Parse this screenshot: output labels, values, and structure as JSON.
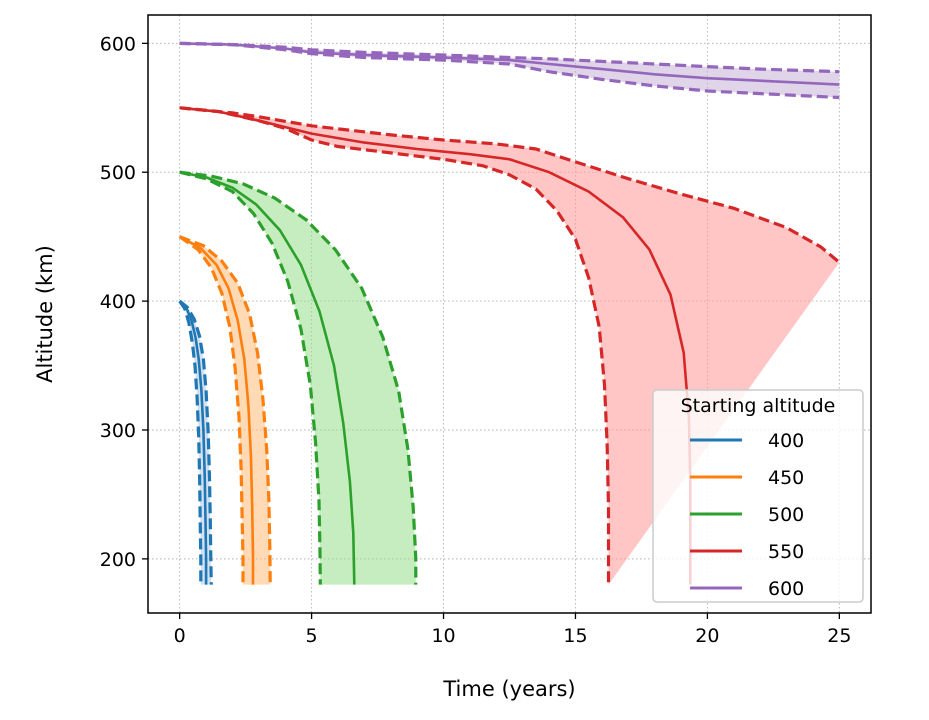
{
  "chart_data": {
    "type": "line",
    "title": "",
    "xlabel": "Time (years)",
    "ylabel": "Altitude (km)",
    "xlim": [
      -1.2,
      26.2
    ],
    "ylim": [
      158,
      622
    ],
    "xticks": [
      0,
      5,
      10,
      15,
      20,
      25
    ],
    "yticks": [
      200,
      300,
      400,
      500,
      600
    ],
    "grid": true,
    "grid_style": "dotted",
    "legend": {
      "title": "Starting altitude",
      "placement": "lower-right"
    },
    "series": [
      {
        "name": "400",
        "color": "#1f77b4",
        "fill_color": "#aec7e8",
        "mean": [
          [
            0,
            400
          ],
          [
            0.25,
            395
          ],
          [
            0.45,
            385
          ],
          [
            0.6,
            372
          ],
          [
            0.72,
            355
          ],
          [
            0.82,
            332
          ],
          [
            0.9,
            300
          ],
          [
            0.95,
            265
          ],
          [
            0.98,
            230
          ],
          [
            1.0,
            200
          ],
          [
            1.0,
            180
          ]
        ],
        "lower": [
          [
            0,
            400
          ],
          [
            0.2,
            394
          ],
          [
            0.35,
            383
          ],
          [
            0.48,
            368
          ],
          [
            0.58,
            350
          ],
          [
            0.66,
            325
          ],
          [
            0.72,
            295
          ],
          [
            0.76,
            260
          ],
          [
            0.78,
            230
          ],
          [
            0.8,
            200
          ],
          [
            0.8,
            180
          ]
        ],
        "upper": [
          [
            0,
            400
          ],
          [
            0.3,
            395
          ],
          [
            0.55,
            386
          ],
          [
            0.75,
            373
          ],
          [
            0.9,
            355
          ],
          [
            1.0,
            330
          ],
          [
            1.08,
            298
          ],
          [
            1.13,
            262
          ],
          [
            1.16,
            230
          ],
          [
            1.18,
            200
          ],
          [
            1.2,
            180
          ]
        ]
      },
      {
        "name": "450",
        "color": "#ff7f0e",
        "fill_color": "#ffbb78",
        "mean": [
          [
            0,
            450
          ],
          [
            0.8,
            441
          ],
          [
            1.4,
            428
          ],
          [
            1.85,
            410
          ],
          [
            2.2,
            385
          ],
          [
            2.45,
            355
          ],
          [
            2.6,
            320
          ],
          [
            2.7,
            280
          ],
          [
            2.75,
            240
          ],
          [
            2.78,
            200
          ],
          [
            2.78,
            180
          ]
        ],
        "lower": [
          [
            0,
            450
          ],
          [
            0.7,
            440
          ],
          [
            1.2,
            426
          ],
          [
            1.6,
            406
          ],
          [
            1.9,
            380
          ],
          [
            2.1,
            348
          ],
          [
            2.25,
            310
          ],
          [
            2.33,
            270
          ],
          [
            2.37,
            230
          ],
          [
            2.4,
            200
          ],
          [
            2.4,
            180
          ]
        ],
        "upper": [
          [
            0,
            450
          ],
          [
            0.9,
            443
          ],
          [
            1.6,
            431
          ],
          [
            2.2,
            414
          ],
          [
            2.65,
            390
          ],
          [
            2.95,
            360
          ],
          [
            3.15,
            325
          ],
          [
            3.3,
            285
          ],
          [
            3.38,
            245
          ],
          [
            3.42,
            205
          ],
          [
            3.43,
            180
          ]
        ]
      },
      {
        "name": "500",
        "color": "#2ca02c",
        "fill_color": "#98df8a",
        "mean": [
          [
            0,
            500
          ],
          [
            1.0,
            496
          ],
          [
            2.0,
            488
          ],
          [
            2.9,
            475
          ],
          [
            3.8,
            455
          ],
          [
            4.6,
            428
          ],
          [
            5.3,
            392
          ],
          [
            5.85,
            350
          ],
          [
            6.2,
            305
          ],
          [
            6.45,
            260
          ],
          [
            6.58,
            220
          ],
          [
            6.62,
            180
          ]
        ],
        "lower": [
          [
            0,
            500
          ],
          [
            1.0,
            495
          ],
          [
            2.0,
            485
          ],
          [
            2.8,
            468
          ],
          [
            3.5,
            445
          ],
          [
            4.1,
            415
          ],
          [
            4.6,
            378
          ],
          [
            4.95,
            335
          ],
          [
            5.15,
            290
          ],
          [
            5.28,
            245
          ],
          [
            5.32,
            205
          ],
          [
            5.33,
            180
          ]
        ],
        "upper": [
          [
            0,
            500
          ],
          [
            1.2,
            497
          ],
          [
            2.4,
            491
          ],
          [
            3.6,
            480
          ],
          [
            4.8,
            463
          ],
          [
            5.9,
            440
          ],
          [
            6.9,
            410
          ],
          [
            7.7,
            372
          ],
          [
            8.3,
            330
          ],
          [
            8.65,
            285
          ],
          [
            8.85,
            240
          ],
          [
            8.95,
            200
          ],
          [
            8.95,
            180
          ]
        ]
      },
      {
        "name": "550",
        "color": "#d62728",
        "fill_color": "#ff9896",
        "mean": [
          [
            0,
            550
          ],
          [
            1.5,
            547
          ],
          [
            3,
            540
          ],
          [
            5,
            530
          ],
          [
            7,
            523
          ],
          [
            9,
            518
          ],
          [
            11,
            514
          ],
          [
            12.5,
            510
          ],
          [
            14,
            500
          ],
          [
            15.5,
            485
          ],
          [
            16.8,
            465
          ],
          [
            17.8,
            440
          ],
          [
            18.6,
            405
          ],
          [
            19.1,
            360
          ],
          [
            19.3,
            310
          ],
          [
            19.35,
            260
          ],
          [
            19.35,
            180
          ]
        ],
        "lower": [
          [
            0,
            550
          ],
          [
            1.5,
            547
          ],
          [
            3,
            540
          ],
          [
            4,
            534
          ],
          [
            5,
            525
          ],
          [
            6,
            520
          ],
          [
            8,
            515
          ],
          [
            10,
            510
          ],
          [
            11.5,
            505
          ],
          [
            12.5,
            498
          ],
          [
            13.5,
            487
          ],
          [
            14.3,
            470
          ],
          [
            15,
            448
          ],
          [
            15.5,
            418
          ],
          [
            15.9,
            380
          ],
          [
            16.1,
            335
          ],
          [
            16.2,
            290
          ],
          [
            16.25,
            240
          ],
          [
            16.25,
            180
          ]
        ],
        "upper": [
          [
            0,
            550
          ],
          [
            2,
            546
          ],
          [
            3,
            543
          ],
          [
            5,
            536
          ],
          [
            8,
            529
          ],
          [
            10,
            525
          ],
          [
            12,
            522
          ],
          [
            13.5,
            518
          ],
          [
            15,
            508
          ],
          [
            17,
            495
          ],
          [
            19,
            483
          ],
          [
            21,
            472
          ],
          [
            23,
            457
          ],
          [
            24.3,
            442
          ],
          [
            25,
            430
          ]
        ]
      },
      {
        "name": "600",
        "color": "#9467bd",
        "fill_color": "#c5b0d5",
        "mean": [
          [
            0,
            600
          ],
          [
            2,
            599
          ],
          [
            4,
            596
          ],
          [
            5,
            593
          ],
          [
            7,
            591
          ],
          [
            10,
            589
          ],
          [
            12.5,
            587
          ],
          [
            14,
            584
          ],
          [
            16,
            580
          ],
          [
            18,
            576
          ],
          [
            20,
            573
          ],
          [
            22,
            571
          ],
          [
            25,
            568
          ]
        ],
        "lower": [
          [
            0,
            600
          ],
          [
            2,
            599
          ],
          [
            4,
            595
          ],
          [
            5,
            592
          ],
          [
            7,
            589
          ],
          [
            10,
            587
          ],
          [
            12.5,
            584
          ],
          [
            14,
            578
          ],
          [
            16,
            572
          ],
          [
            18,
            567
          ],
          [
            20,
            563
          ],
          [
            22,
            561
          ],
          [
            25,
            558
          ]
        ],
        "upper": [
          [
            0,
            600
          ],
          [
            2,
            599
          ],
          [
            4,
            597
          ],
          [
            5,
            595
          ],
          [
            7,
            593
          ],
          [
            10,
            591
          ],
          [
            12.5,
            589
          ],
          [
            14,
            588
          ],
          [
            16,
            586
          ],
          [
            18,
            584
          ],
          [
            20,
            582
          ],
          [
            22,
            580
          ],
          [
            25,
            578
          ]
        ]
      }
    ]
  }
}
